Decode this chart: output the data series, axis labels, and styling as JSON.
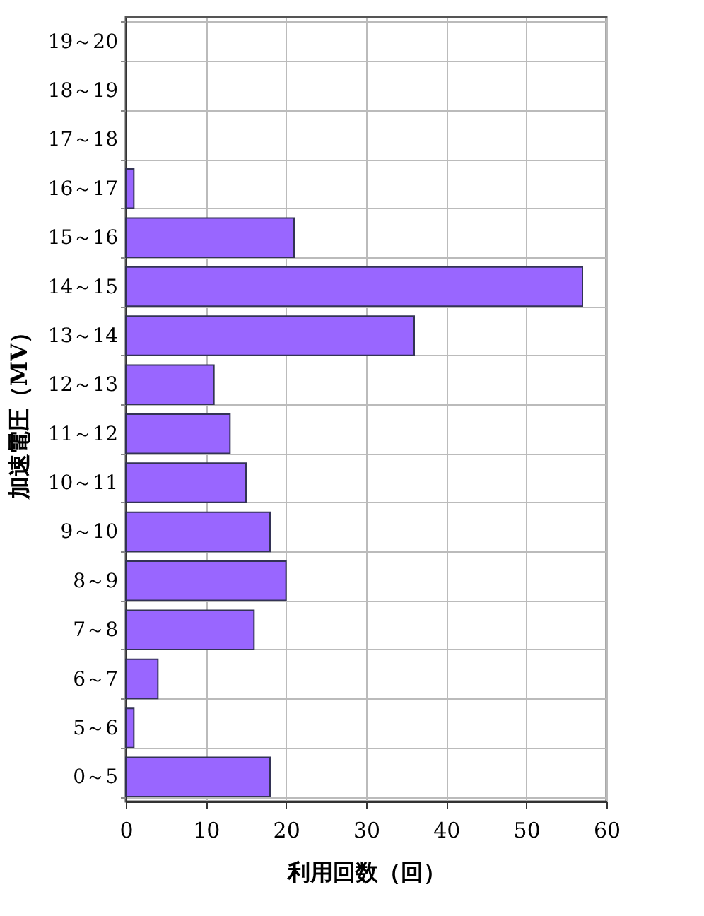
{
  "chart_data": {
    "type": "bar",
    "orientation": "horizontal",
    "xlabel": "利用回数（回）",
    "ylabel": "加速電圧（MV）",
    "categories": [
      "19～20",
      "18～19",
      "17～18",
      "16～17",
      "15～16",
      "14～15",
      "13～14",
      "12～13",
      "11～12",
      "10～11",
      "9～10",
      "8～9",
      "7～8",
      "6～7",
      "5～6",
      "0～5"
    ],
    "values": [
      0,
      0,
      0,
      1,
      21,
      57,
      36,
      11,
      13,
      15,
      18,
      20,
      16,
      4,
      1,
      18
    ],
    "color": "#9966ff",
    "xlim": [
      0,
      60
    ],
    "xticks": [
      0,
      10,
      20,
      30,
      40,
      50,
      60
    ],
    "grid": true
  }
}
